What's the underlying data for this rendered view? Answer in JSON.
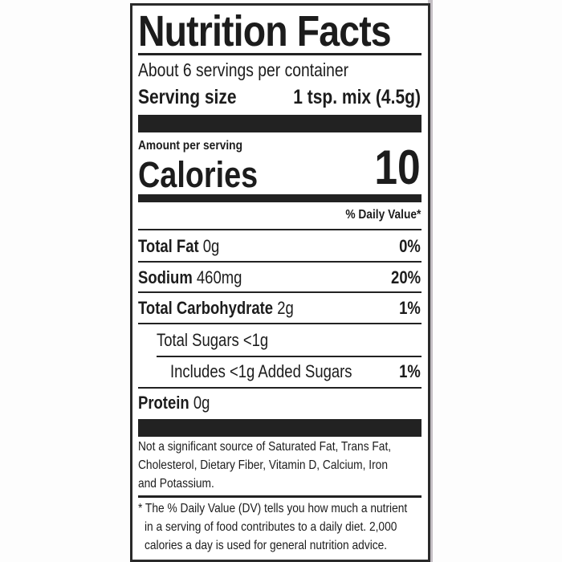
{
  "title": "Nutrition Facts",
  "servings_per_container": "About 6 servings per container",
  "serving_size": {
    "label": "Serving size",
    "value": "1 tsp. mix (4.5g)"
  },
  "amount_per_serving": "Amount per serving",
  "calories": {
    "label": "Calories",
    "value": "10"
  },
  "daily_value_header": "% Daily Value*",
  "nutrients": [
    {
      "name": "Total Fat",
      "amount": "0g",
      "dv": "0%"
    },
    {
      "name": "Sodium",
      "amount": "460mg",
      "dv": "20%"
    },
    {
      "name": "Total Carbohydrate",
      "amount": "2g",
      "dv": "1%"
    },
    {
      "name": "Total Sugars <1g",
      "amount": "",
      "dv": ""
    },
    {
      "name": "Includes <1g Added Sugars",
      "amount": "",
      "dv": "1%"
    },
    {
      "name": "Protein",
      "amount": "0g",
      "dv": ""
    }
  ],
  "not_significant": [
    "Not a significant source of Saturated Fat, Trans Fat,",
    "Cholesterol, Dietary Fiber, Vitamin D, Calcium, Iron",
    "and Potassium."
  ],
  "footnote": [
    "* The % Daily Value (DV) tells you how much a nutrient",
    "in a serving of food contributes to a daily diet. 2,000",
    "calories a day is used for general nutrition advice."
  ]
}
